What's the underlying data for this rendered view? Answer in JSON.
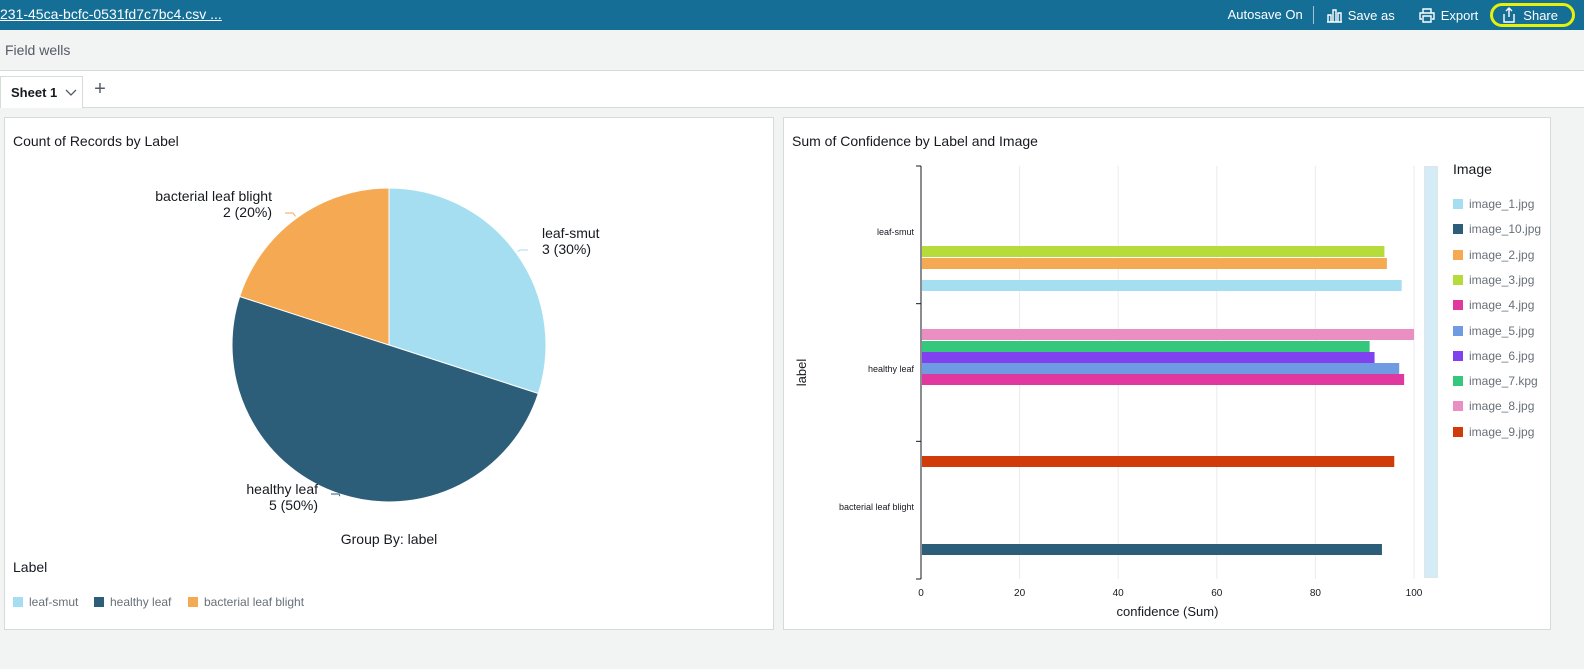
{
  "header": {
    "file_title": "231-45ca-bcfc-0531fd7c7bc4.csv ...",
    "autosave": "Autosave On",
    "save_as": "Save as",
    "export": "Export",
    "share": "Share"
  },
  "field_wells": "Field wells",
  "sheet": {
    "tab_label": "Sheet 1",
    "add": "+"
  },
  "pie_panel": {
    "title": "Count of Records by Label",
    "group_by": "Group By: label",
    "legend_title": "Label",
    "legend": [
      "leaf-smut",
      "healthy leaf",
      "bacterial leaf blight"
    ]
  },
  "bar_panel": {
    "title": "Sum of Confidence by Label and Image",
    "legend_title": "Image"
  },
  "colors": {
    "topbar": "#146e96",
    "leaf-smut": "#a5def0",
    "healthy leaf": "#2c5e79",
    "bacterial leaf blight": "#f4a952"
  },
  "chart_data": [
    {
      "type": "pie",
      "title": "Count of Records by Label",
      "categories": [
        "leaf-smut",
        "healthy leaf",
        "bacterial leaf blight"
      ],
      "values": [
        3,
        5,
        2
      ],
      "labels": [
        {
          "name": "leaf-smut",
          "value": "3 (30%)"
        },
        {
          "name": "healthy leaf",
          "value": "5 (50%)"
        },
        {
          "name": "bacterial leaf blight",
          "value": "2 (20%)"
        }
      ],
      "colors": [
        "#a5def0",
        "#2c5e79",
        "#f4a952"
      ],
      "xlabel": "Group By: label"
    },
    {
      "type": "bar",
      "orientation": "horizontal",
      "title": "Sum of Confidence by Label and Image",
      "categories": [
        "leaf-smut",
        "healthy leaf",
        "bacterial leaf blight"
      ],
      "xlabel": "confidence (Sum)",
      "ylabel": "label",
      "xlim": [
        0,
        100
      ],
      "xticks": [
        0,
        20,
        40,
        60,
        80,
        100
      ],
      "series": [
        {
          "name": "image_1.jpg",
          "color": "#a5def0",
          "values": [
            97.5,
            null,
            null
          ]
        },
        {
          "name": "image_10.jpg",
          "color": "#2c5e79",
          "values": [
            null,
            null,
            93.5
          ]
        },
        {
          "name": "image_2.jpg",
          "color": "#f4a952",
          "values": [
            94.5,
            null,
            null
          ]
        },
        {
          "name": "image_3.jpg",
          "color": "#b6dc3c",
          "values": [
            94,
            null,
            null
          ]
        },
        {
          "name": "image_4.jpg",
          "color": "#e0389e",
          "values": [
            null,
            98,
            null
          ]
        },
        {
          "name": "image_5.jpg",
          "color": "#6f9be2",
          "values": [
            null,
            97,
            null
          ]
        },
        {
          "name": "image_6.jpg",
          "color": "#8042ee",
          "values": [
            null,
            92,
            null
          ]
        },
        {
          "name": "image_7.kpg",
          "color": "#35c87c",
          "values": [
            null,
            91,
            null
          ]
        },
        {
          "name": "image_8.jpg",
          "color": "#e98fc1",
          "values": [
            null,
            100,
            null
          ]
        },
        {
          "name": "image_9.jpg",
          "color": "#d13b0a",
          "values": [
            null,
            null,
            96
          ]
        }
      ]
    }
  ]
}
